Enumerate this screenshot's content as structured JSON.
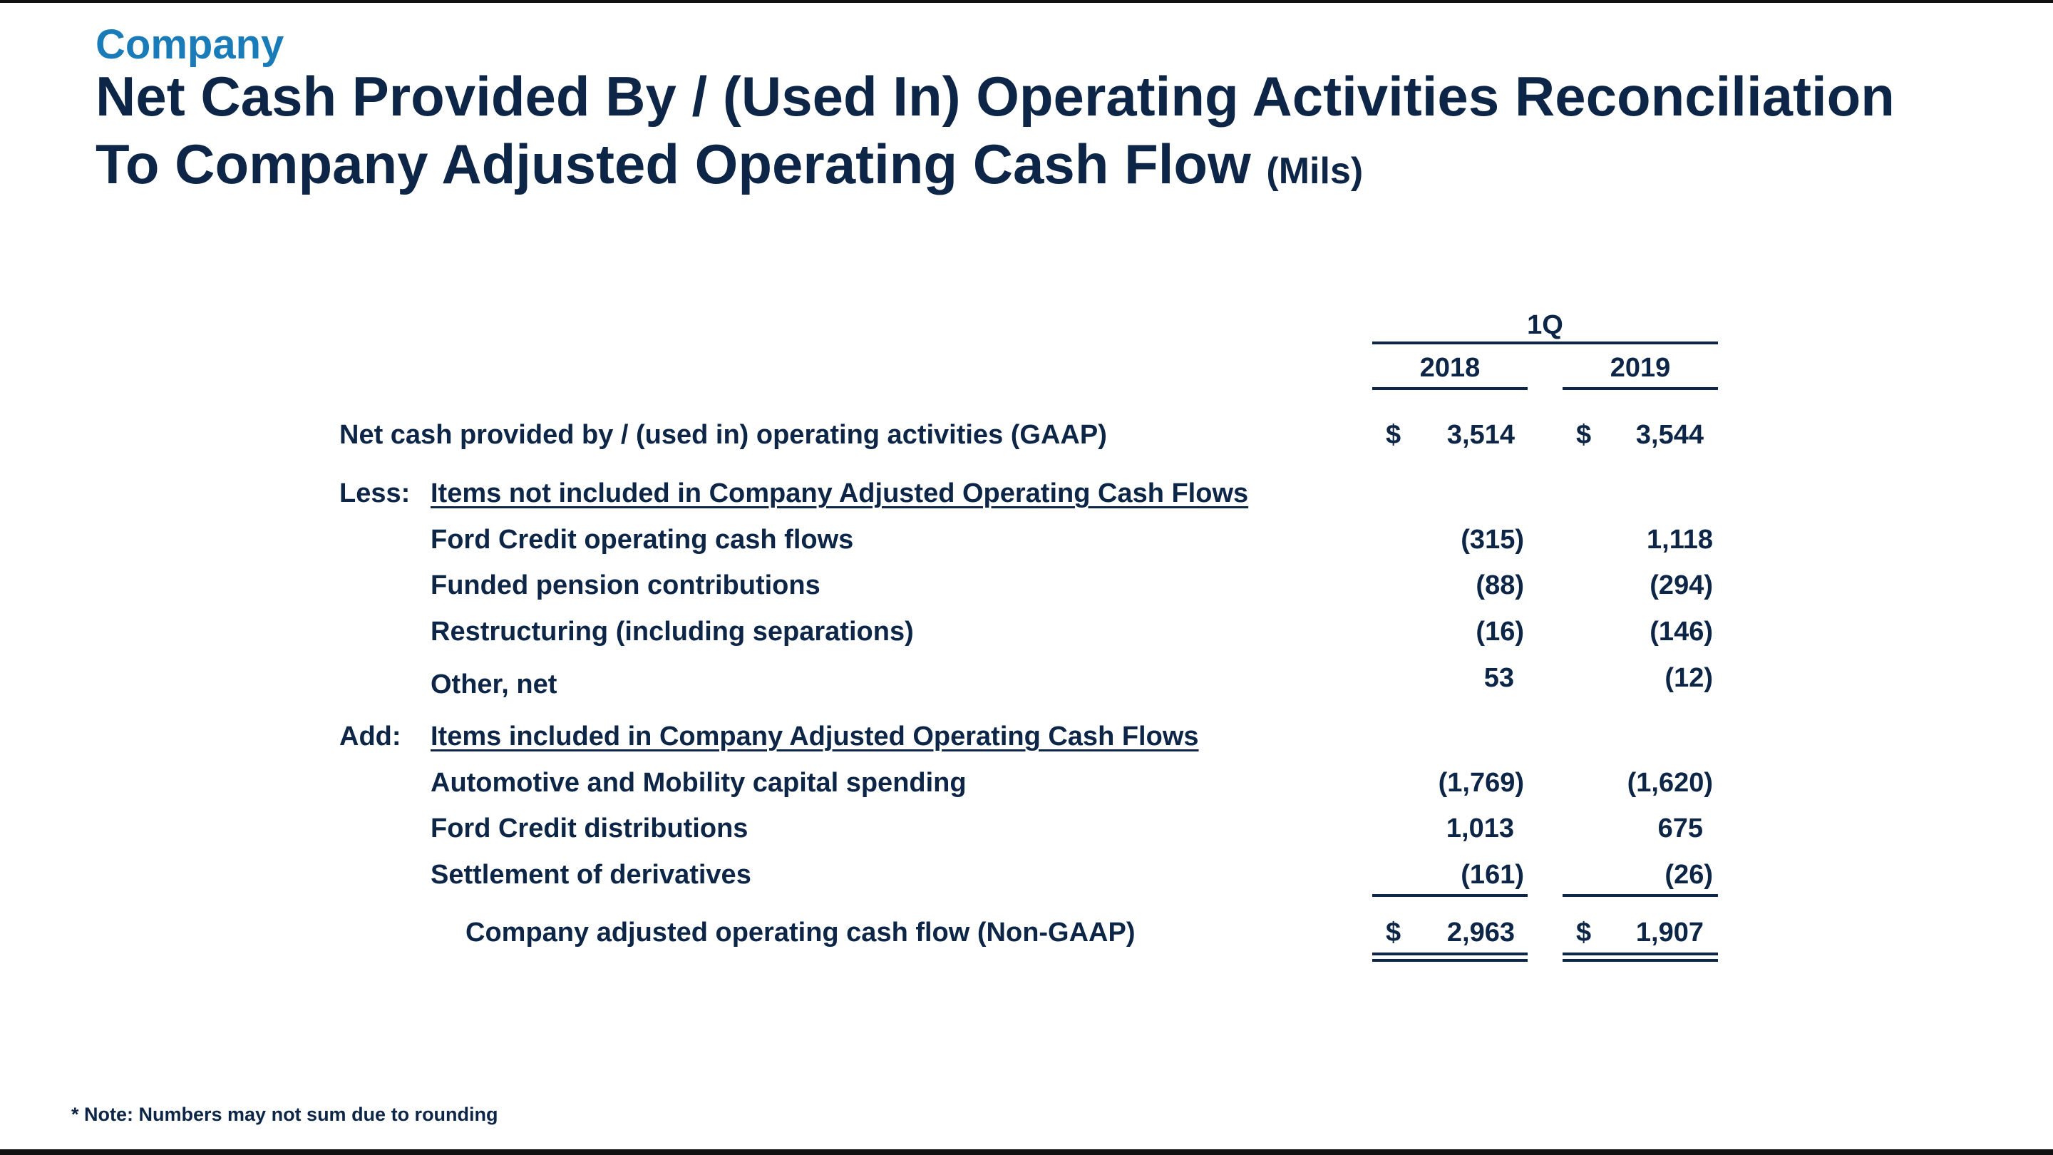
{
  "header": {
    "kicker": "Company",
    "title_line1": "Net Cash Provided By / (Used In) Operating Activities Reconciliation",
    "title_line2": "To Company Adjusted Operating Cash Flow",
    "title_unit": "(Mils)"
  },
  "table": {
    "period_header": "1Q",
    "columns": [
      "2018",
      "2019"
    ],
    "gaap_row": {
      "label": "Net cash provided by / (used in) operating activities (GAAP)",
      "currency": "$",
      "values": [
        "3,514",
        "3,544"
      ]
    },
    "less_section": {
      "prefix": "Less:",
      "heading": "Items not included in Company Adjusted Operating Cash Flows",
      "rows": [
        {
          "label": "Ford Credit operating cash flows",
          "values": [
            "(315)",
            "1,118"
          ]
        },
        {
          "label": "Funded pension contributions",
          "values": [
            "(88)",
            "(294)"
          ]
        },
        {
          "label": "Restructuring (including separations)",
          "values": [
            "(16)",
            "(146)"
          ]
        },
        {
          "label": "Other, net",
          "values": [
            "53",
            "(12)"
          ]
        }
      ]
    },
    "add_section": {
      "prefix": "Add:",
      "heading": "Items included in Company Adjusted Operating Cash Flows",
      "rows": [
        {
          "label": "Automotive and Mobility capital spending",
          "values": [
            "(1,769)",
            "(1,620)"
          ]
        },
        {
          "label": "Ford Credit distributions",
          "values": [
            "1,013",
            "675"
          ]
        },
        {
          "label": "Settlement of derivatives",
          "values": [
            "(161)",
            "(26)"
          ]
        }
      ]
    },
    "total_row": {
      "label": "Company adjusted operating cash flow (Non-GAAP)",
      "currency": "$",
      "values": [
        "2,963",
        "1,907"
      ]
    }
  },
  "footnote": "* Note: Numbers may not sum due to rounding",
  "colors": {
    "title": "#0d2647",
    "kicker": "#1a7bb9",
    "text": "#0d2647"
  }
}
